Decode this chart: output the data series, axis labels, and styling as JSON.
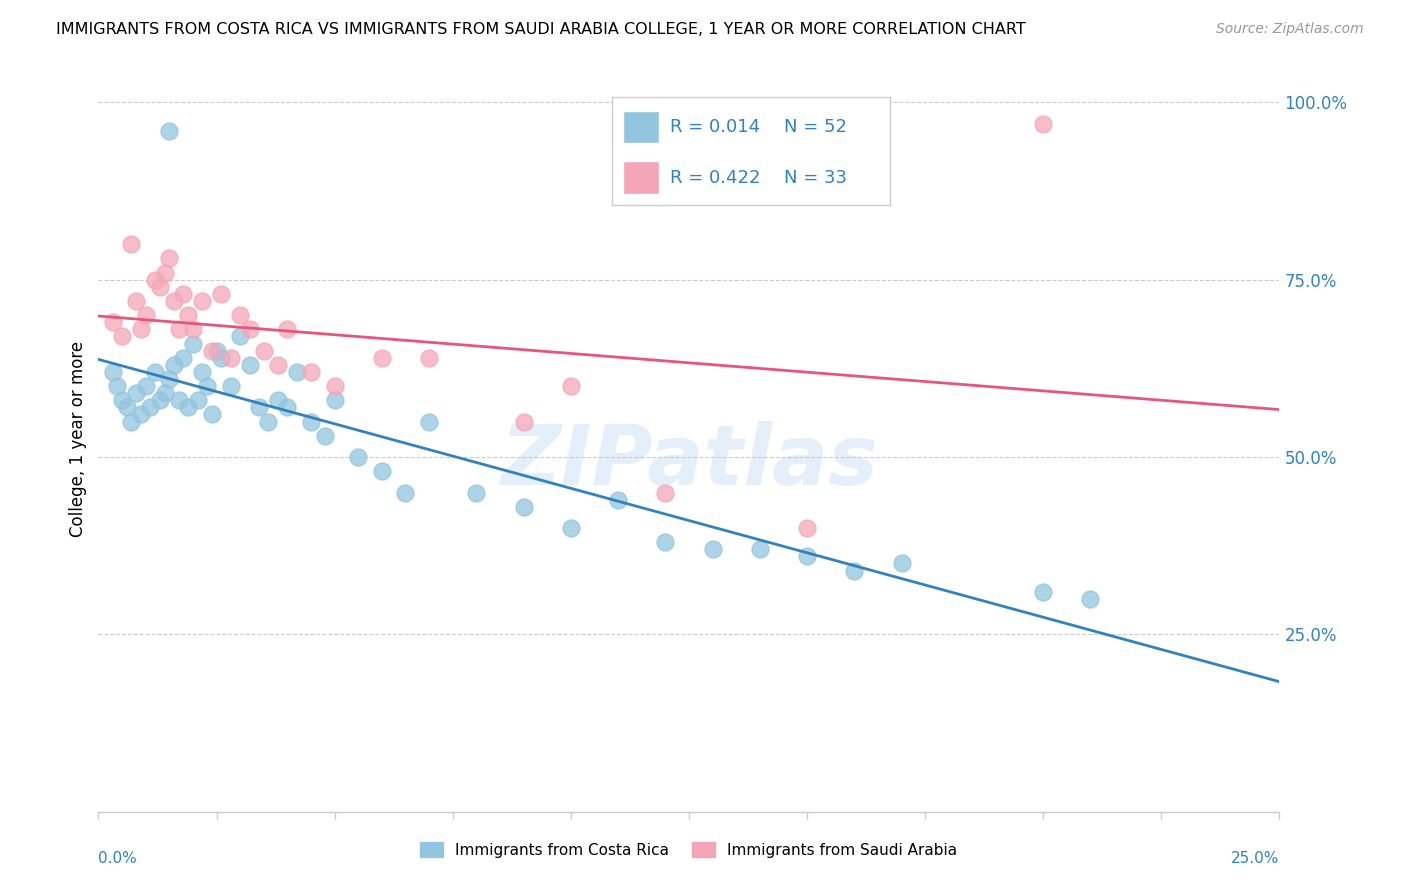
{
  "title": "IMMIGRANTS FROM COSTA RICA VS IMMIGRANTS FROM SAUDI ARABIA COLLEGE, 1 YEAR OR MORE CORRELATION CHART",
  "source": "Source: ZipAtlas.com",
  "ylabel": "College, 1 year or more",
  "xlim": [
    0.0,
    0.25
  ],
  "ylim": [
    0.0,
    1.05
  ],
  "watermark": "ZIPatlas",
  "legend_label_blue": "Immigrants from Costa Rica",
  "legend_label_pink": "Immigrants from Saudi Arabia",
  "blue_color": "#92c5de",
  "pink_color": "#f4a6b8",
  "blue_line_color": "#3182bd",
  "pink_line_color": "#e8557a",
  "legend_text_color": "#3182bd",
  "ytick_color": "#3182bd",
  "xtick_label_color": "#3182bd",
  "grid_color": "#cccccc",
  "blue_x": [
    0.003,
    0.004,
    0.005,
    0.006,
    0.007,
    0.008,
    0.009,
    0.01,
    0.011,
    0.012,
    0.013,
    0.014,
    0.015,
    0.016,
    0.017,
    0.018,
    0.019,
    0.02,
    0.021,
    0.022,
    0.023,
    0.024,
    0.025,
    0.026,
    0.028,
    0.03,
    0.032,
    0.034,
    0.036,
    0.038,
    0.04,
    0.042,
    0.045,
    0.048,
    0.05,
    0.055,
    0.06,
    0.065,
    0.07,
    0.08,
    0.09,
    0.1,
    0.11,
    0.12,
    0.13,
    0.14,
    0.15,
    0.16,
    0.17,
    0.2,
    0.21,
    0.015
  ],
  "blue_y": [
    0.62,
    0.6,
    0.58,
    0.57,
    0.55,
    0.59,
    0.56,
    0.6,
    0.57,
    0.62,
    0.58,
    0.59,
    0.61,
    0.63,
    0.58,
    0.64,
    0.57,
    0.66,
    0.58,
    0.62,
    0.6,
    0.56,
    0.65,
    0.64,
    0.6,
    0.67,
    0.63,
    0.57,
    0.55,
    0.58,
    0.57,
    0.62,
    0.55,
    0.53,
    0.58,
    0.5,
    0.48,
    0.45,
    0.55,
    0.45,
    0.43,
    0.4,
    0.44,
    0.38,
    0.37,
    0.37,
    0.36,
    0.34,
    0.35,
    0.31,
    0.3,
    0.96
  ],
  "pink_x": [
    0.003,
    0.005,
    0.007,
    0.008,
    0.009,
    0.01,
    0.012,
    0.013,
    0.014,
    0.015,
    0.016,
    0.017,
    0.018,
    0.019,
    0.02,
    0.022,
    0.024,
    0.026,
    0.028,
    0.03,
    0.032,
    0.035,
    0.038,
    0.04,
    0.045,
    0.05,
    0.06,
    0.07,
    0.09,
    0.1,
    0.12,
    0.15,
    0.2
  ],
  "pink_y": [
    0.69,
    0.67,
    0.8,
    0.72,
    0.68,
    0.7,
    0.75,
    0.74,
    0.76,
    0.78,
    0.72,
    0.68,
    0.73,
    0.7,
    0.68,
    0.72,
    0.65,
    0.73,
    0.64,
    0.7,
    0.68,
    0.65,
    0.63,
    0.68,
    0.62,
    0.6,
    0.64,
    0.64,
    0.55,
    0.6,
    0.45,
    0.4,
    0.97
  ]
}
